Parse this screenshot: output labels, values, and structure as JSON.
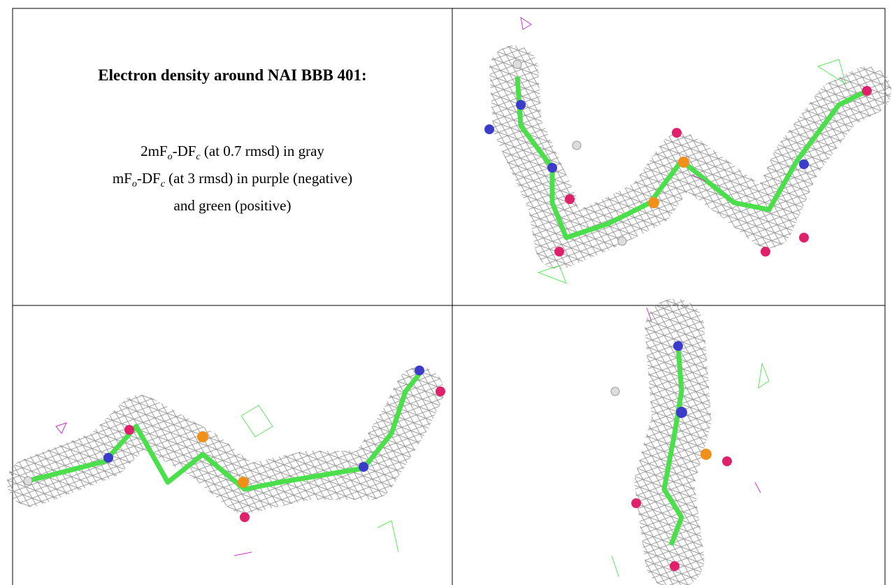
{
  "caption": {
    "title": "Electron density around NAI BBB 401:",
    "lines": [
      [
        "2mF",
        "o",
        "-DF",
        "c",
        " (at 0.7 rmsd) in gray"
      ],
      [
        "mF",
        "o",
        "-DF",
        "c",
        " (at 3 rmsd) in purple (negative)"
      ],
      [
        "and green (positive)"
      ]
    ]
  }
}
